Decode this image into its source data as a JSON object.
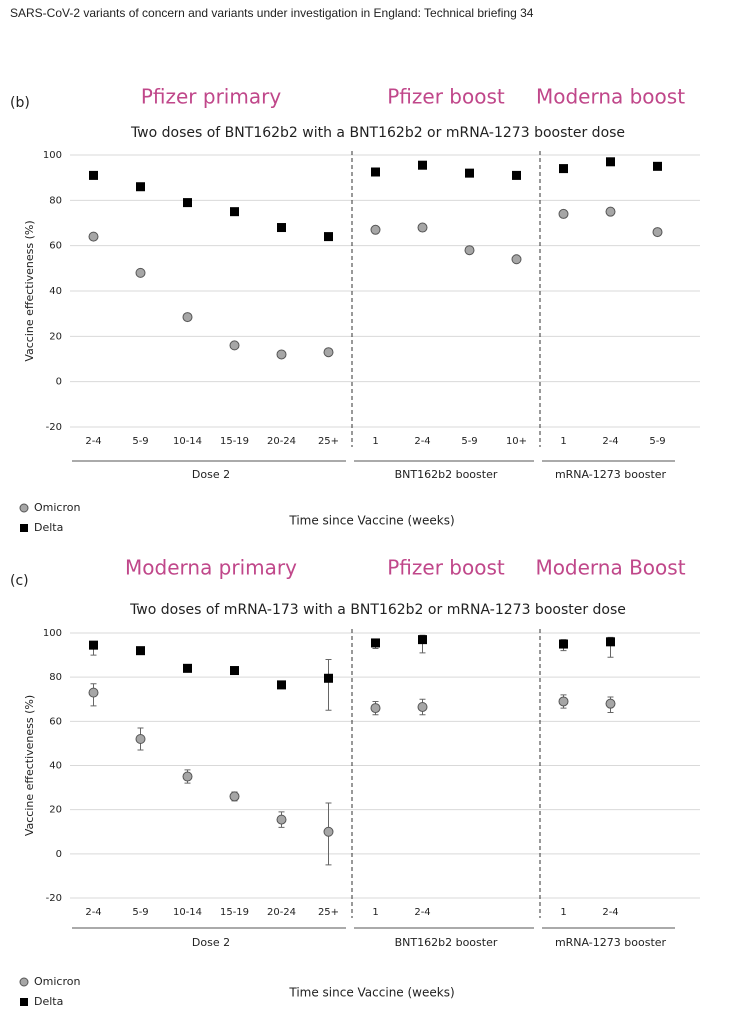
{
  "header": "SARS-CoV-2 variants of concern and variants under investigation in England: Technical briefing 34",
  "chart_data": [
    {
      "type": "dot",
      "panel_label": "(b)",
      "title": "Two doses of BNT162b2 with a BNT162b2 or mRNA-1273 booster dose",
      "ylabel": "Vaccine effectiveness (%)",
      "xlabel": "Time since Vaccine (weeks)",
      "groups": [
        {
          "heading": "Pfizer primary",
          "name": "Dose 2",
          "categories": [
            "2-4",
            "5-9",
            "10-14",
            "15-19",
            "20-24",
            "25+"
          ]
        },
        {
          "heading": "Pfizer boost",
          "name": "BNT162b2 booster",
          "categories": [
            "1",
            "2-4",
            "5-9",
            "10+"
          ]
        },
        {
          "heading": "Moderna boost",
          "name": "mRNA-1273 booster",
          "categories": [
            "1",
            "2-4",
            "5-9"
          ]
        }
      ],
      "series": [
        {
          "name": "Omicron",
          "color": "#a6a6a6",
          "marker": "circle",
          "values": [
            64,
            48,
            28.5,
            16,
            12,
            13,
            67,
            68,
            58,
            54,
            74,
            75,
            66
          ]
        },
        {
          "name": "Delta",
          "color": "#000000",
          "marker": "square",
          "values": [
            91,
            86,
            79,
            75,
            68,
            64,
            92.5,
            95.5,
            92,
            91,
            94,
            97,
            95
          ]
        }
      ],
      "ylim": [
        -20,
        100
      ],
      "yticks": [
        -20,
        0,
        20,
        40,
        60,
        80,
        100
      ],
      "grid": true,
      "legend": "bottom-left"
    },
    {
      "type": "dot",
      "panel_label": "(c)",
      "title": "Two doses of mRNA-173 with a BNT162b2 or mRNA-1273 booster dose",
      "ylabel": "Vaccine effectiveness (%)",
      "xlabel": "Time since Vaccine (weeks)",
      "groups": [
        {
          "heading": "Moderna primary",
          "name": "Dose 2",
          "categories": [
            "2-4",
            "5-9",
            "10-14",
            "15-19",
            "20-24",
            "25+"
          ]
        },
        {
          "heading": "Pfizer boost",
          "name": "BNT162b2 booster",
          "categories": [
            "1",
            "2-4",
            null,
            null
          ]
        },
        {
          "heading": "Moderna Boost",
          "name": "mRNA-1273 booster",
          "categories": [
            "1",
            "2-4",
            null
          ]
        }
      ],
      "series": [
        {
          "name": "Omicron",
          "color": "#a6a6a6",
          "marker": "circle",
          "values": [
            73,
            52,
            35,
            26,
            15.5,
            10,
            66,
            66.5,
            null,
            null,
            69,
            68,
            null
          ],
          "error_low": [
            67,
            47,
            32,
            24,
            12,
            -5,
            63,
            63,
            null,
            null,
            66,
            64,
            null
          ],
          "error_high": [
            77,
            57,
            38,
            28,
            19,
            23,
            69,
            70,
            null,
            null,
            72,
            71,
            null
          ]
        },
        {
          "name": "Delta",
          "color": "#000000",
          "marker": "square",
          "values": [
            94.5,
            92,
            84,
            83,
            76.5,
            79.5,
            95.5,
            97,
            null,
            null,
            95,
            96,
            null
          ],
          "error_low": [
            90,
            91,
            83,
            82,
            75,
            65,
            93,
            91,
            null,
            null,
            92,
            89,
            null
          ],
          "error_high": [
            96,
            93,
            85,
            84,
            78,
            88,
            97,
            99,
            null,
            null,
            97,
            98,
            null
          ]
        }
      ],
      "ylim": [
        -20,
        100
      ],
      "yticks": [
        -20,
        0,
        20,
        40,
        60,
        80,
        100
      ],
      "grid": true,
      "legend": "bottom-left"
    }
  ]
}
